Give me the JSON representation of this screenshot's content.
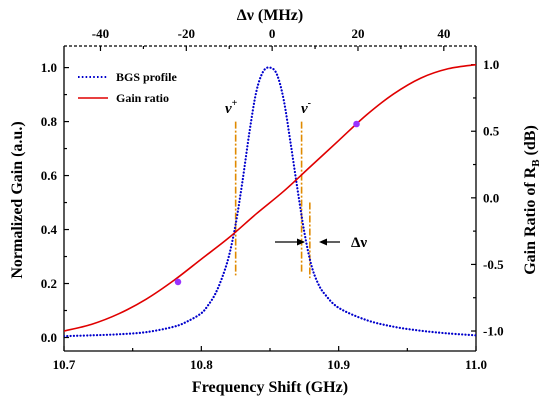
{
  "chart_data": {
    "type": "line",
    "xlabel_bottom": "Frequency Shift (GHz)",
    "xlabel_top": "Δν (MHz)",
    "ylabel_left": "Normalized Gain (a.u.)",
    "ylabel_right_prefix": "Gain Ratio of  R",
    "ylabel_right_sub": "B",
    "ylabel_right_suffix": " (dB)",
    "xlim": [
      10.7,
      11.0
    ],
    "ylim_left": [
      -0.05,
      1.08
    ],
    "ylim_right": [
      -1.15,
      1.14
    ],
    "x_top_lim": [
      -48.5,
      47.5
    ],
    "x_ticks": [
      "10.7",
      "10.8",
      "10.9",
      "11.0"
    ],
    "x_top_ticks": [
      "-40",
      "-20",
      "0",
      "20",
      "40"
    ],
    "y_left_ticks": [
      "0.0",
      "0.2",
      "0.4",
      "0.6",
      "0.8",
      "1.0"
    ],
    "y_right_ticks": [
      "-1.0",
      "-0.5",
      "0.0",
      "0.5",
      "1.0"
    ],
    "legend": {
      "placement": "top-left",
      "items": [
        "BGS profile",
        "Gain ratio"
      ]
    },
    "series": [
      {
        "name": "BGS profile",
        "axis": "left",
        "color": "#0000cc",
        "style": "dotted",
        "x": [
          10.7,
          10.72,
          10.74,
          10.76,
          10.78,
          10.79,
          10.8,
          10.805,
          10.81,
          10.815,
          10.82,
          10.825,
          10.83,
          10.835,
          10.84,
          10.845,
          10.85,
          10.855,
          10.86,
          10.865,
          10.87,
          10.875,
          10.88,
          10.885,
          10.89,
          10.9,
          10.92,
          10.94,
          10.96,
          10.98,
          11.0
        ],
        "y": [
          0.005,
          0.008,
          0.012,
          0.02,
          0.04,
          0.06,
          0.09,
          0.12,
          0.16,
          0.22,
          0.3,
          0.42,
          0.58,
          0.76,
          0.91,
          0.985,
          1.0,
          0.975,
          0.88,
          0.72,
          0.55,
          0.39,
          0.27,
          0.2,
          0.16,
          0.11,
          0.065,
          0.04,
          0.025,
          0.015,
          0.008
        ]
      },
      {
        "name": "Gain ratio",
        "axis": "right",
        "color": "#e00000",
        "style": "solid",
        "x": [
          10.7,
          10.72,
          10.74,
          10.76,
          10.78,
          10.8,
          10.82,
          10.84,
          10.86,
          10.88,
          10.9,
          10.92,
          10.94,
          10.96,
          10.98,
          11.0
        ],
        "y": [
          -1.0,
          -0.95,
          -0.87,
          -0.76,
          -0.62,
          -0.46,
          -0.3,
          -0.12,
          0.05,
          0.24,
          0.43,
          0.62,
          0.78,
          0.9,
          0.97,
          1.0
        ]
      }
    ],
    "markers": [
      {
        "x": 10.783,
        "y_left": 0.206,
        "color": "#9933ff"
      },
      {
        "x": 10.913,
        "y_left": 0.791,
        "color": "#9933ff"
      }
    ],
    "vlines": [
      {
        "x": 10.825,
        "y_top": 0.8,
        "y_bottom": 0.23,
        "color": "#e08a00"
      },
      {
        "x": 10.873,
        "y_top": 0.8,
        "y_bottom": 0.24,
        "color": "#e08a00"
      },
      {
        "x": 10.879,
        "y_top": 0.5,
        "y_bottom": 0.22,
        "color": "#e08a00"
      }
    ],
    "annotations": {
      "nu_plus": {
        "base": "ν",
        "sup": "+"
      },
      "nu_minus": {
        "base": "ν",
        "sup": "-"
      },
      "delta_nu": "Δν"
    }
  }
}
